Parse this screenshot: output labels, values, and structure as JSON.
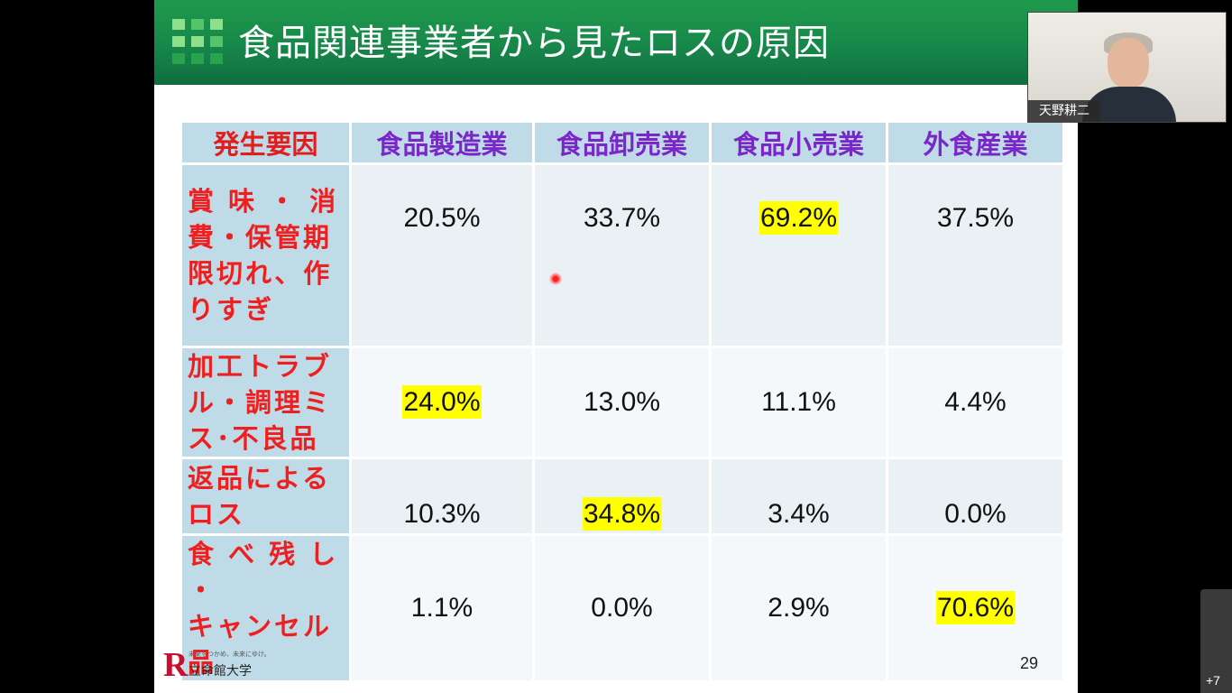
{
  "slide": {
    "title": "食品関連事業者から見たロスの原因",
    "page_number": "29",
    "logo": {
      "letter": "R",
      "tagline": "未来をつかめ、未来にゆけ。",
      "name": "立命館大学"
    }
  },
  "table": {
    "headers": [
      "発生要因",
      "食品製造業",
      "食品卸売業",
      "食品小売業",
      "外食産業"
    ],
    "rows": [
      {
        "cause": "賞味・消費・保管期限切れ、作りすぎ",
        "cause_lines": [
          "賞 味 ・ 消",
          "費・保管期",
          "限切れ、作",
          "りすぎ"
        ],
        "values": [
          "20.5%",
          "33.7%",
          "69.2%",
          "37.5%"
        ],
        "highlight_index": 2
      },
      {
        "cause": "加工トラブル・調理ミス･不良品",
        "cause_lines": [
          "加工トラブ",
          "ル・調理ミ",
          "ス･不良品"
        ],
        "values": [
          "24.0%",
          "13.0%",
          "11.1%",
          "4.4%"
        ],
        "highlight_index": 0
      },
      {
        "cause": "返品によるロス",
        "cause_lines": [
          "返品による",
          "ロス"
        ],
        "values": [
          "10.3%",
          "34.8%",
          "3.4%",
          "0.0%"
        ],
        "highlight_index": 1
      },
      {
        "cause": "食べ残し・キャンセル品",
        "cause_lines": [
          "食 べ 残 し ・",
          "キャンセル",
          "品"
        ],
        "values": [
          "1.1%",
          "0.0%",
          "2.9%",
          "70.6%"
        ],
        "highlight_index": 3
      }
    ]
  },
  "video": {
    "participant_name": "天野耕二"
  },
  "participants": {
    "more_count": "+7"
  },
  "colors": {
    "title_bar": "#17874a",
    "header_text": "#7a26c9",
    "cause_text": "#ef1f1f",
    "highlight": "#ffff00",
    "header_bg": "#bfdbe7"
  }
}
